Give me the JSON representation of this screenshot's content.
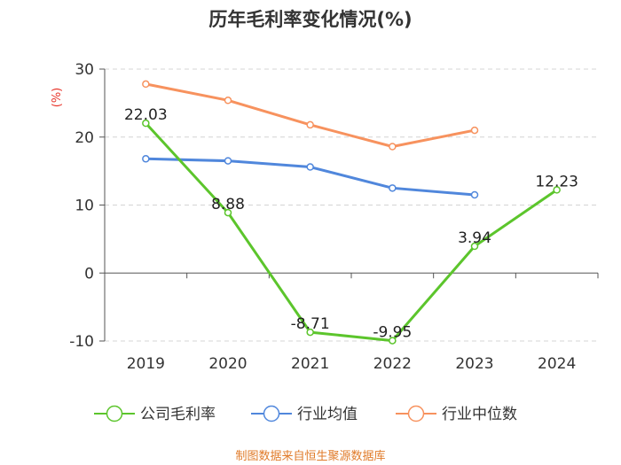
{
  "chart_data": {
    "type": "line",
    "title": "历年毛利率变化情况(%)",
    "ylabel": "(%)",
    "xlabel": "",
    "categories": [
      "2019",
      "2020",
      "2021",
      "2022",
      "2023",
      "2024"
    ],
    "ylim": [
      -10,
      30
    ],
    "yticks": [
      -10,
      0,
      10,
      20,
      30
    ],
    "grid": true,
    "legend_position": "bottom",
    "series": [
      {
        "name": "公司毛利率",
        "color": "#5cc52c",
        "values": [
          22.03,
          8.88,
          -8.71,
          -9.95,
          3.94,
          12.23
        ],
        "show_labels": true
      },
      {
        "name": "行业均值",
        "color": "#5087dc",
        "values": [
          16.8,
          16.5,
          15.6,
          12.5,
          11.5,
          null
        ],
        "show_labels": false
      },
      {
        "name": "行业中位数",
        "color": "#f7925e",
        "values": [
          27.8,
          25.4,
          21.8,
          18.6,
          21.0,
          null
        ],
        "show_labels": false
      }
    ]
  },
  "footer": "制图数据来自恒生聚源数据库"
}
